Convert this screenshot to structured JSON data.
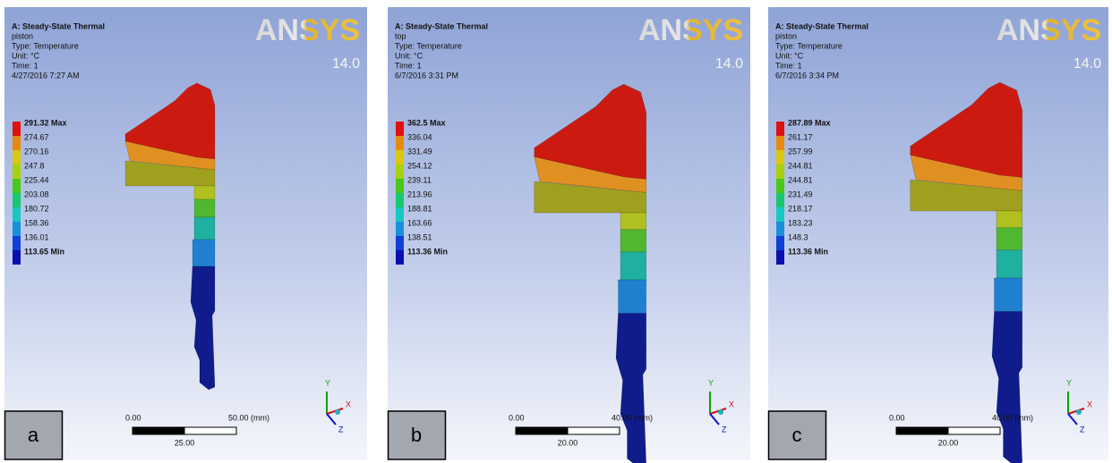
{
  "panels": [
    {
      "header": {
        "title": "A: Steady-State Thermal",
        "name": "piston",
        "type": "Type: Temperature",
        "unit": "Unit: °C",
        "time": "Time: 1",
        "date": "4/27/2016 7:27 AM"
      },
      "logo": "ANSYS",
      "version": "14.0",
      "legend": [
        "291.32 Max",
        "274.67",
        "270.16",
        "247.8",
        "225.44",
        "203.08",
        "180.72",
        "158.36",
        "136.01",
        "113.65 Min"
      ],
      "scale": {
        "start": "0.00",
        "end": "50.00 (mm)",
        "mid": "25.00"
      },
      "axes": {
        "y": "Y",
        "x": "X",
        "z": "Z"
      },
      "label": "a"
    },
    {
      "header": {
        "title": "A: Steady-State Thermal",
        "name": "top",
        "type": "Type: Temperature",
        "unit": "Unit: °C",
        "time": "Time: 1",
        "date": "6/7/2016 3:31 PM"
      },
      "logo": "ANSYS",
      "version": "14.0",
      "legend": [
        "362.5 Max",
        "336.04",
        "331.49",
        "254.12",
        "239.11",
        "213.96",
        "188.81",
        "163.66",
        "138.51",
        "113.36 Min"
      ],
      "scale": {
        "start": "0.00",
        "end": "40.00 (mm)",
        "mid": "20.00"
      },
      "axes": {
        "y": "Y",
        "x": "X",
        "z": "Z"
      },
      "label": "b"
    },
    {
      "header": {
        "title": "A: Steady-State Thermal",
        "name": "piston",
        "type": "Type: Temperature",
        "unit": "Unit: °C",
        "time": "Time: 1",
        "date": "6/7/2016 3:34 PM"
      },
      "logo": "ANSYS",
      "version": "14.0",
      "legend": [
        "287.89 Max",
        "261.17",
        "257.99",
        "244.81",
        "244.81",
        "231.49",
        "218.17",
        "183.23",
        "148.3",
        "113.36 Min"
      ],
      "scale": {
        "start": "0.00",
        "end": "40.00 (mm)",
        "mid": "20.00"
      },
      "axes": {
        "y": "Y",
        "x": "X",
        "z": "Z"
      },
      "label": "c"
    }
  ]
}
